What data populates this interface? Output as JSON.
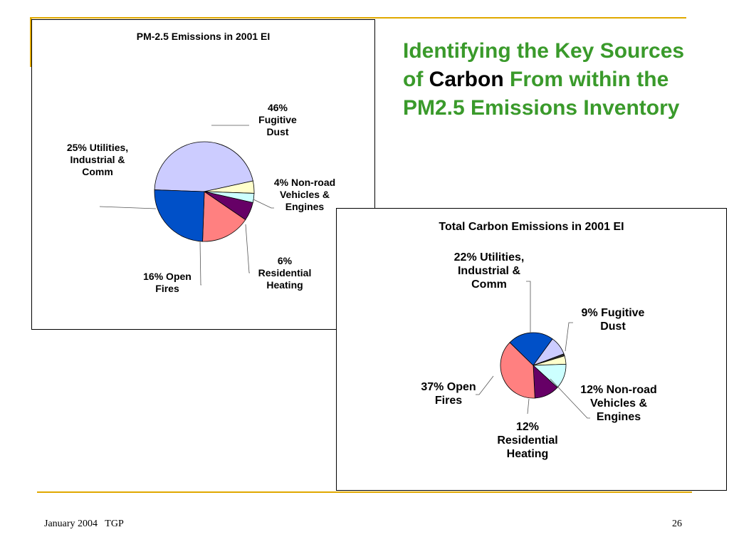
{
  "slide": {
    "title_before": "Identifying the Key Sources of ",
    "title_highlight": "Carbon",
    "title_after": " From within the PM2.5 Emissions Inventory",
    "footer_left": "January 2004   TGP",
    "page_number": "26"
  },
  "colors": {
    "title_green": "#3a9a2b",
    "rule_gold": "#e0a800"
  },
  "chart_data": [
    {
      "type": "pie",
      "title": "PM-2.5 Emissions in 2001 EI",
      "slices": [
        {
          "label": "46% Fugitive Dust",
          "value": 46,
          "color": "#ccccff"
        },
        {
          "label": "4% Non-road Vehicles & Engines",
          "value": 4,
          "color": "#ffffcc"
        },
        {
          "label": "",
          "value": 3,
          "color": "#ccffff"
        },
        {
          "label": "6% Residential Heating",
          "value": 6,
          "color": "#660066"
        },
        {
          "label": "16% Open Fires",
          "value": 16,
          "color": "#ff8080"
        },
        {
          "label": "25% Utilities, Industrial & Comm",
          "value": 25,
          "color": "#0050c8"
        }
      ]
    },
    {
      "type": "pie",
      "title": "Total Carbon Emissions in 2001 EI",
      "slices": [
        {
          "label": "9% Fugitive Dust",
          "value": 9,
          "color": "#ccccff"
        },
        {
          "label": "",
          "value": 1,
          "color": "#333333"
        },
        {
          "label": "",
          "value": 4,
          "color": "#ffffcc"
        },
        {
          "label": "12% Non-road Vehicles & Engines",
          "value": 12,
          "color": "#ccffff"
        },
        {
          "label": "12% Residential Heating",
          "value": 12,
          "color": "#660066"
        },
        {
          "label": "37% Open Fires",
          "value": 37,
          "color": "#ff8080"
        },
        {
          "label": "22% Utilities, Industrial & Comm",
          "value": 22,
          "color": "#0050c8"
        }
      ]
    }
  ]
}
